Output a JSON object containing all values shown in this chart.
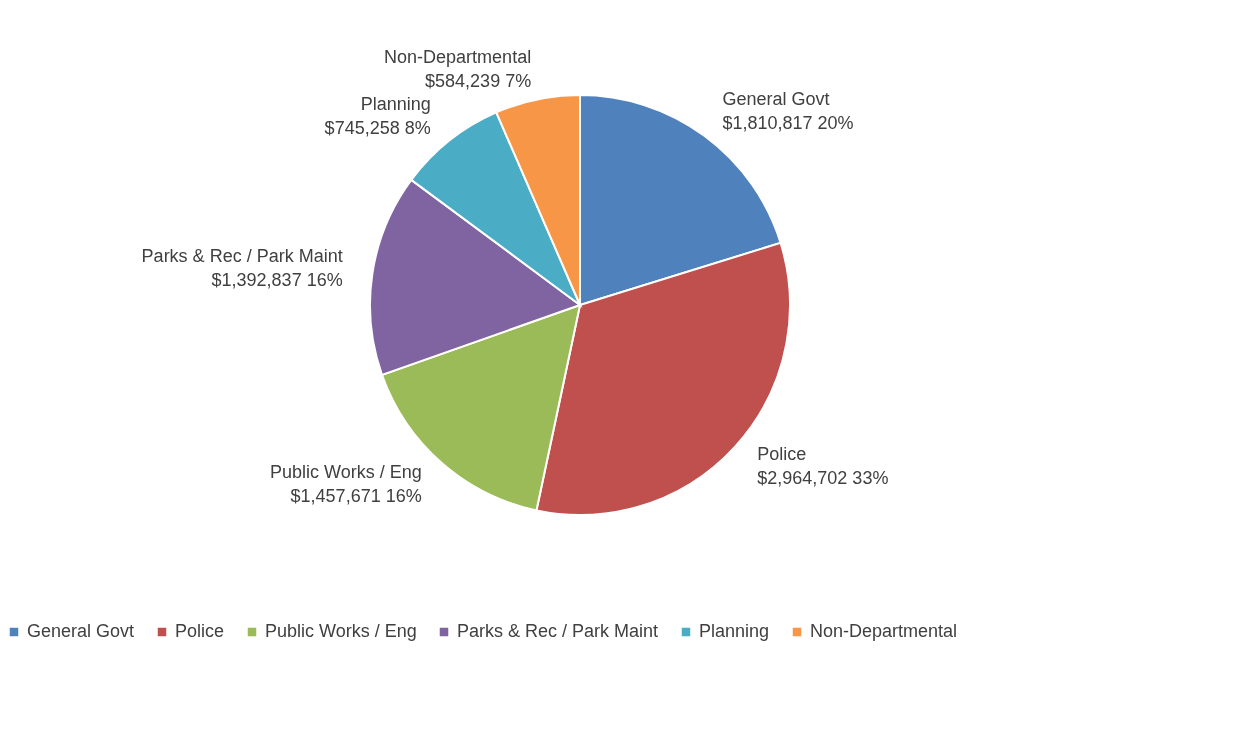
{
  "chart_data": {
    "type": "pie",
    "categories": [
      "General Govt",
      "Police",
      "Public Works / Eng",
      "Parks & Rec / Park Maint",
      "Planning",
      "Non-Departmental"
    ],
    "values": [
      1810817,
      2964702,
      1457671,
      1392837,
      745258,
      584239
    ],
    "value_labels": [
      "$1,810,817  20%",
      "$2,964,702  33%",
      "$1,457,671  16%",
      "$1,392,837  16%",
      "$745,258  8%",
      "$584,239  7%"
    ],
    "colors": [
      "#4f81bd",
      "#c0504d",
      "#9bbb59",
      "#8064a2",
      "#4bacc6",
      "#f79646"
    ],
    "legend": "bottom"
  }
}
